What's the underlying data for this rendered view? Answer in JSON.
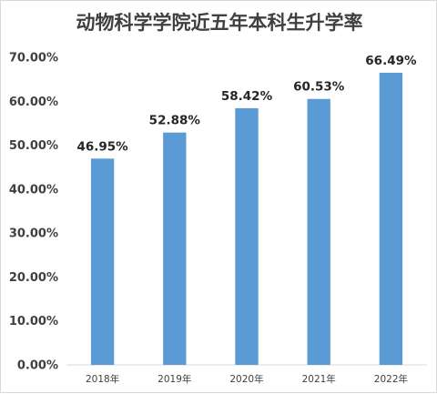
{
  "chart_data": {
    "type": "bar",
    "title": "动物科学学院近五年本科生升学率",
    "categories": [
      "2018年",
      "2019年",
      "2020年",
      "2021年",
      "2022年"
    ],
    "values": [
      46.95,
      52.88,
      58.42,
      60.53,
      66.49
    ],
    "data_labels": [
      "46.95%",
      "52.88%",
      "58.42%",
      "60.53%",
      "66.49%"
    ],
    "y_ticks": [
      "0.00%",
      "10.00%",
      "20.00%",
      "30.00%",
      "40.00%",
      "50.00%",
      "60.00%",
      "70.00%"
    ],
    "ylim": [
      0,
      70
    ],
    "grid": false,
    "legend": "none",
    "bar_color": "#5b9bd5",
    "xlabel": "",
    "ylabel": ""
  }
}
